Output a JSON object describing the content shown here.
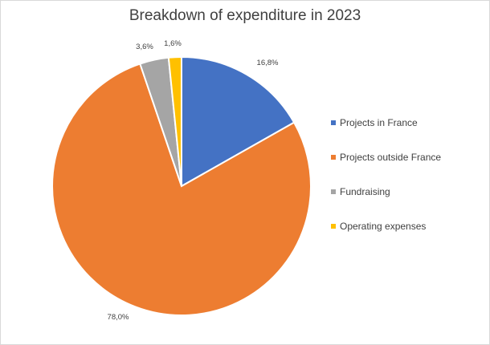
{
  "chart_data": {
    "type": "pie",
    "title": "Breakdown of expenditure in 2023",
    "categories": [
      "Projects in France",
      "Projects outside France",
      "Fundraising",
      "Operating expenses"
    ],
    "values": [
      16.8,
      78.0,
      3.6,
      1.6
    ],
    "data_labels": [
      "16,8%",
      "78,0%",
      "3,6%",
      "1,6%"
    ],
    "colors": [
      "#4472c4",
      "#ed7d31",
      "#a5a5a5",
      "#ffc000"
    ],
    "legend_position": "right",
    "start_angle": "12 o'clock, clockwise"
  }
}
